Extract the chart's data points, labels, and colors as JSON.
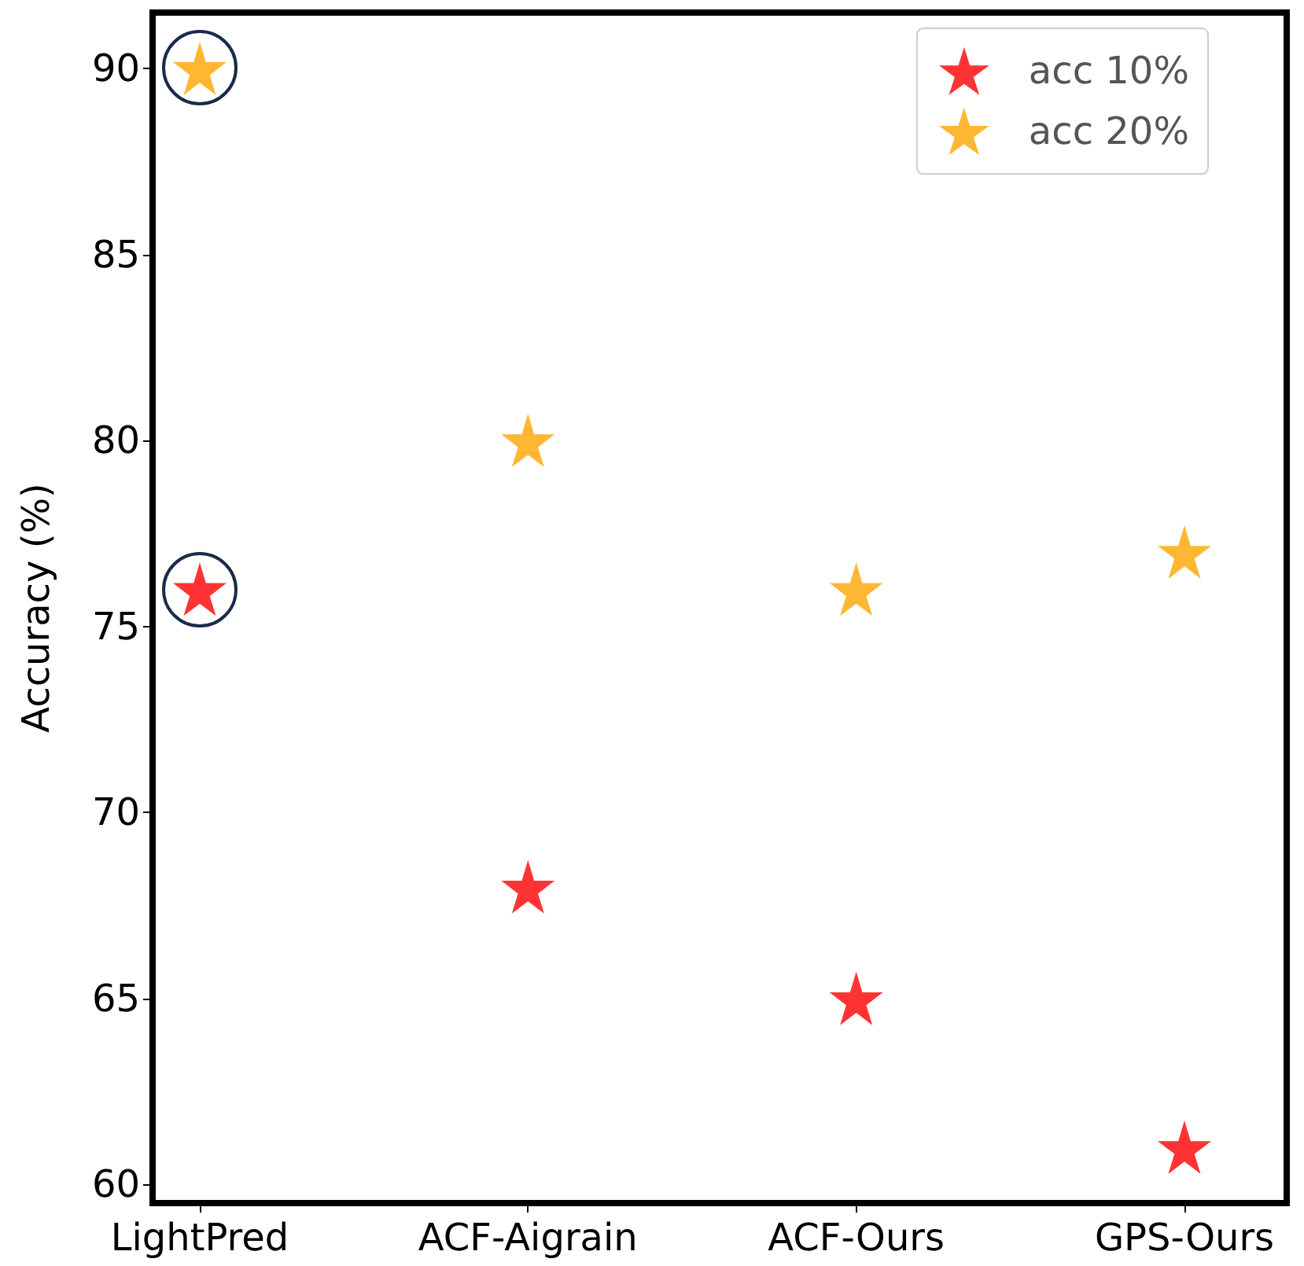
{
  "chart_data": {
    "type": "scatter",
    "ylabel": "Accuracy (%)",
    "categories": [
      "LightPred",
      "ACF-Aigrain",
      "ACF-Ours",
      "GPS-Ours"
    ],
    "series": [
      {
        "name": "acc 10%",
        "color": "#ff0000",
        "values": [
          76,
          68,
          65,
          61
        ]
      },
      {
        "name": "acc 20%",
        "color": "#ffa500",
        "values": [
          90,
          80,
          76,
          77
        ]
      }
    ],
    "ylim": [
      59.5,
      91.5
    ],
    "yticks": [
      60,
      65,
      70,
      75,
      80,
      85,
      90
    ],
    "grid": false,
    "legend": "top right",
    "marker": "star"
  }
}
